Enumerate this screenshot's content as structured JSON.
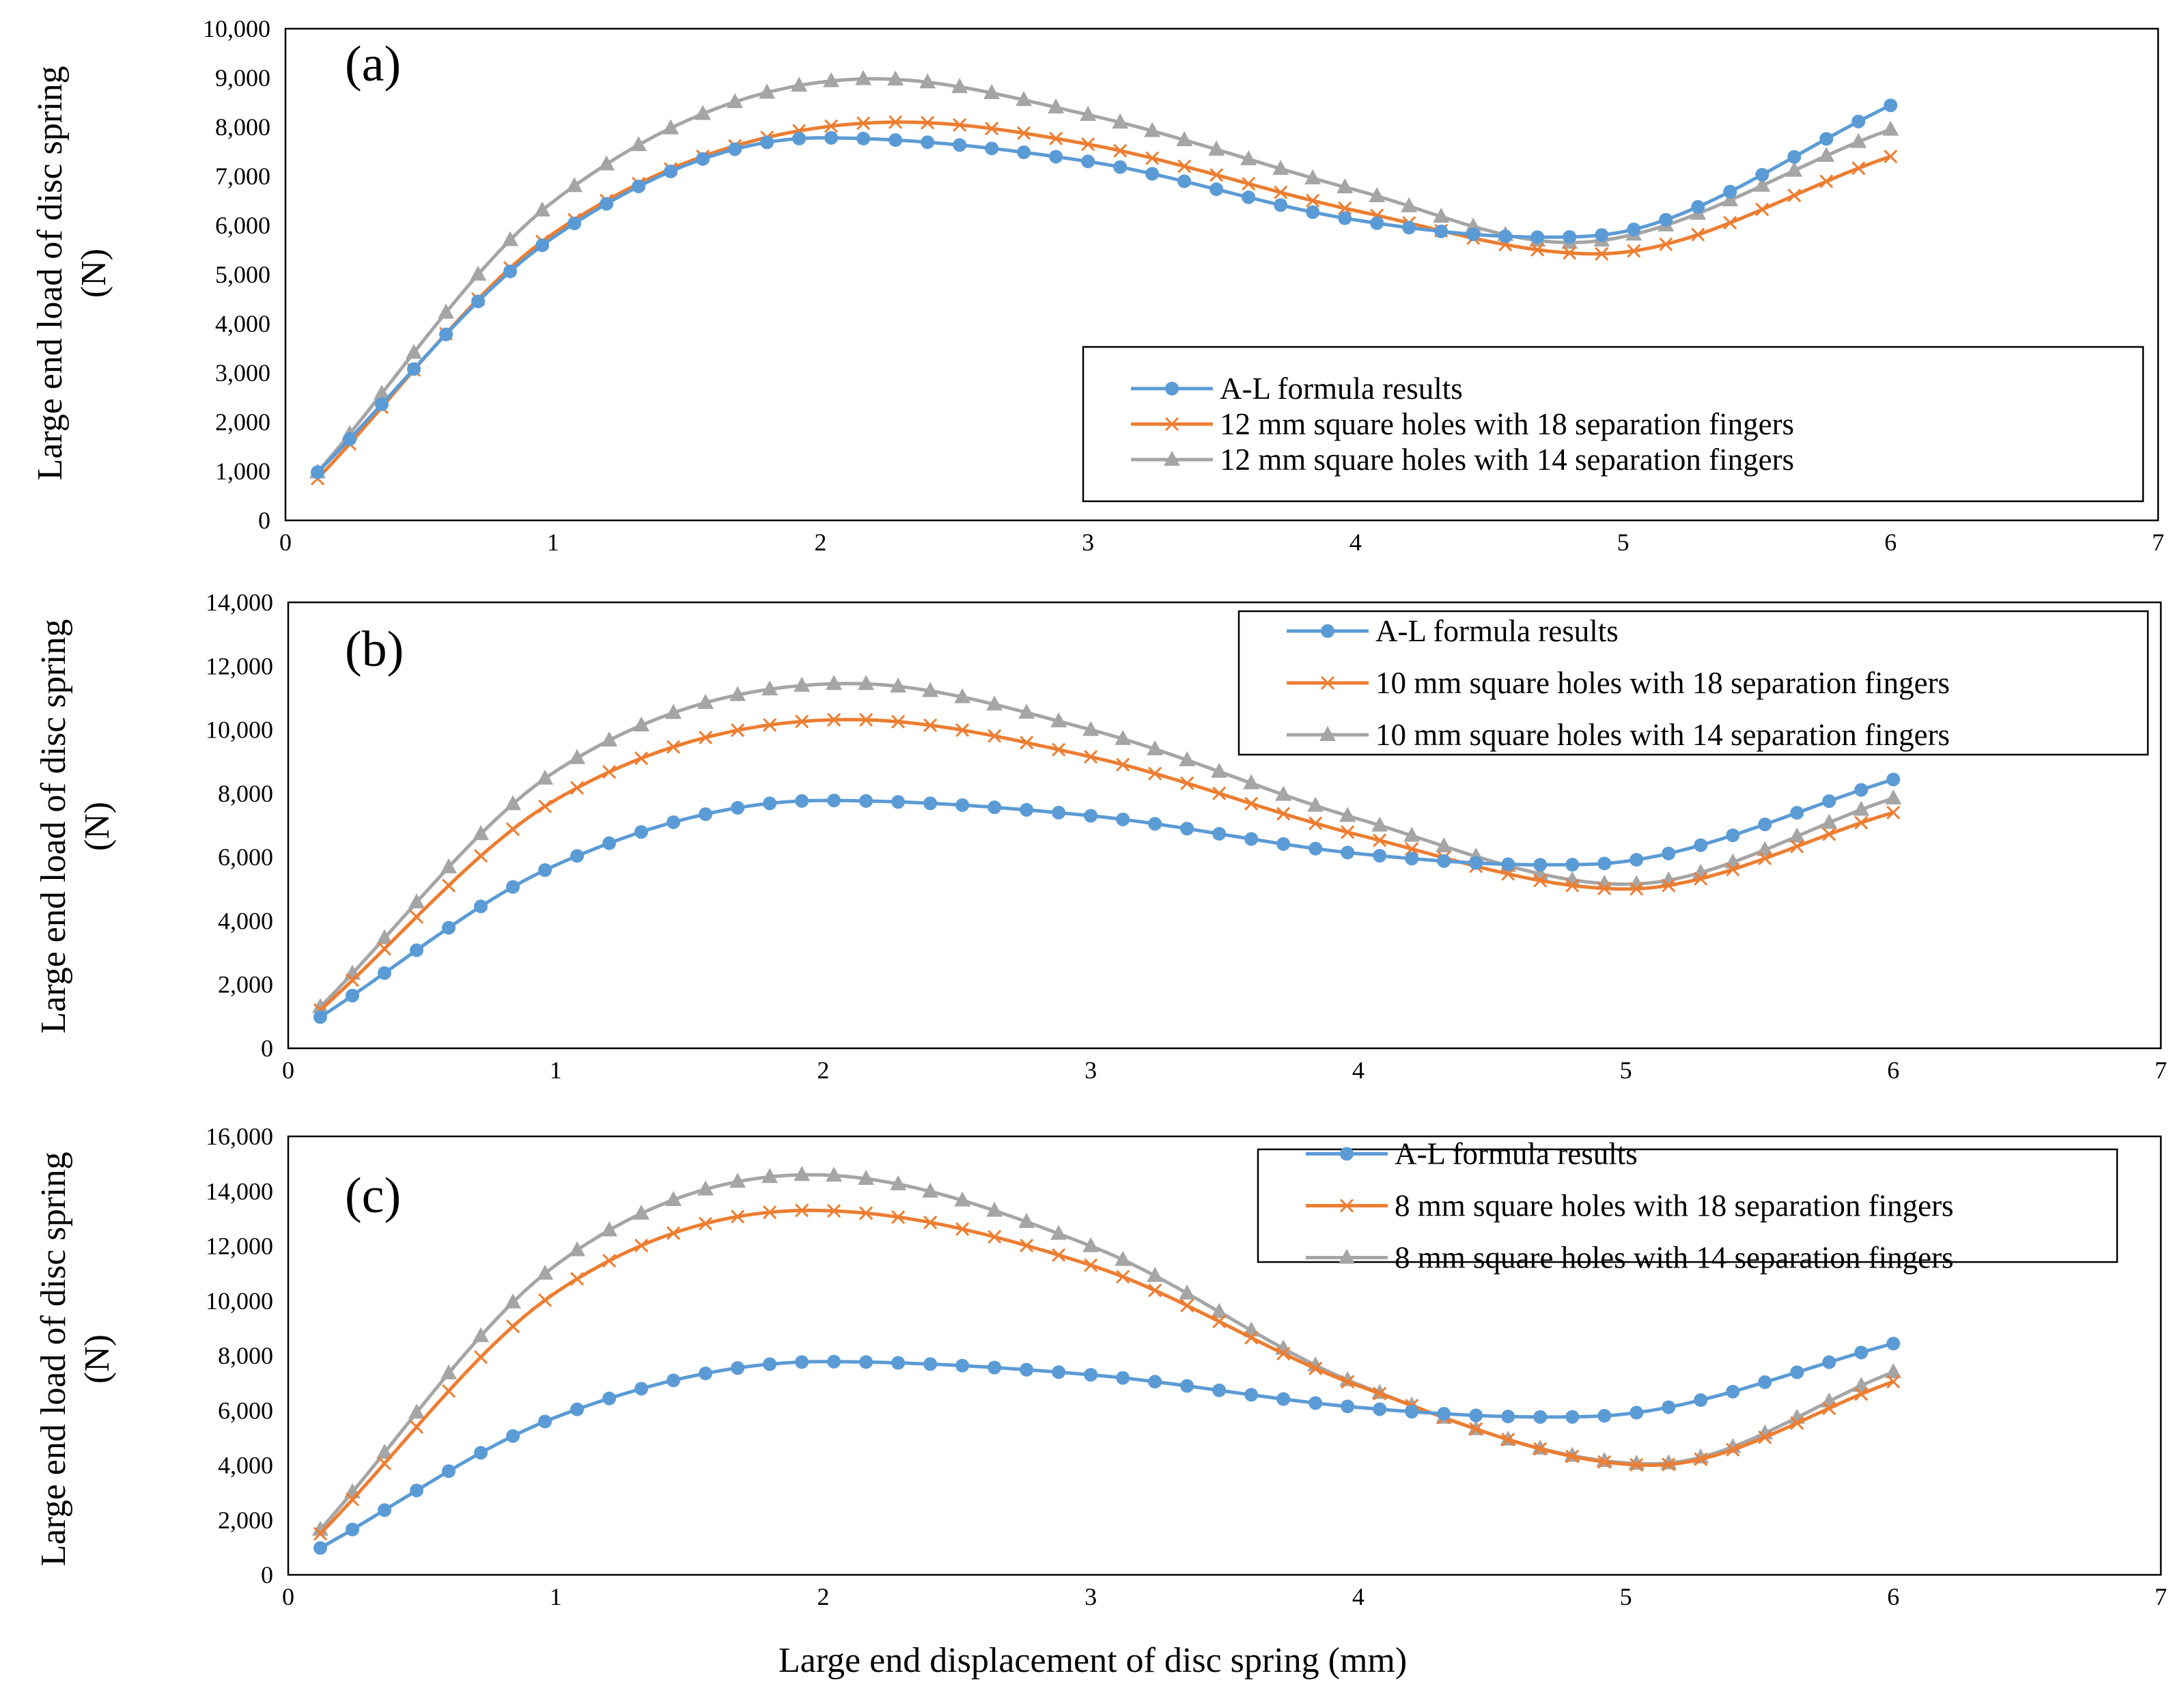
{
  "figure": {
    "xlabel": "Large end displacement of disc spring   (mm)"
  },
  "colors": {
    "al": "#5B9BD5",
    "f18": "#ED7D31",
    "f14": "#A5A5A5"
  },
  "chart_data": [
    {
      "type": "line",
      "panel": "(a)",
      "ylabel_line1": "Large end load of disc spring",
      "ylabel_line2": "(N)",
      "xlim": [
        0,
        7
      ],
      "ylim": [
        0,
        10000
      ],
      "xticks": [
        "0",
        "1",
        "2",
        "3",
        "4",
        "5",
        "6",
        "7"
      ],
      "yticks": [
        "0",
        "1,000",
        "2,000",
        "3,000",
        "4,000",
        "5,000",
        "6,000",
        "7,000",
        "8,000",
        "9,000",
        "10,000"
      ],
      "legend_position": "lower-right",
      "series": [
        {
          "name": "A-L formula results",
          "key": "al",
          "marker": "circle",
          "points": [
            [
              0.12,
              980
            ],
            [
              1,
              5750
            ],
            [
              2,
              7780
            ],
            [
              3,
              7300
            ],
            [
              4,
              6110
            ],
            [
              4.7,
              5760
            ],
            [
              5,
              5870
            ],
            [
              6,
              8440
            ]
          ]
        },
        {
          "name": "12 mm square holes with 18 separation fingers",
          "key": "f18",
          "marker": "x",
          "points": [
            [
              0.12,
              850
            ],
            [
              1,
              5830
            ],
            [
              2.3,
              8100
            ],
            [
              3,
              7650
            ],
            [
              4,
              6300
            ],
            [
              4.9,
              5420
            ],
            [
              6,
              7400
            ]
          ]
        },
        {
          "name": "12 mm square holes with 14 separation fingers",
          "key": "f14",
          "marker": "triangle",
          "points": [
            [
              0.12,
              980
            ],
            [
              1,
              6480
            ],
            [
              2.2,
              8980
            ],
            [
              3,
              8250
            ],
            [
              4,
              6720
            ],
            [
              4.8,
              5650
            ],
            [
              6,
              7950
            ]
          ]
        }
      ]
    },
    {
      "type": "line",
      "panel": "(b)",
      "ylabel_line1": "Large end load of disc spring",
      "ylabel_line2": "(N)",
      "xlim": [
        0,
        7
      ],
      "ylim": [
        0,
        14000
      ],
      "xticks": [
        "0",
        "1",
        "2",
        "3",
        "4",
        "5",
        "6",
        "7"
      ],
      "yticks": [
        "0",
        "2,000",
        "4,000",
        "6,000",
        "8,000",
        "10,000",
        "12,000",
        "14,000"
      ],
      "legend_position": "top-right",
      "series": [
        {
          "name": "A-L formula results",
          "key": "al",
          "marker": "circle",
          "points": [
            [
              0.12,
              980
            ],
            [
              1,
              5750
            ],
            [
              2,
              7780
            ],
            [
              3,
              7300
            ],
            [
              4,
              6110
            ],
            [
              4.7,
              5760
            ],
            [
              5,
              5870
            ],
            [
              6,
              8440
            ]
          ]
        },
        {
          "name": "10 mm square holes with 18  separation fingers",
          "key": "f18",
          "marker": "x",
          "points": [
            [
              0.12,
              1200
            ],
            [
              1,
              7800
            ],
            [
              2.1,
              10320
            ],
            [
              3,
              9150
            ],
            [
              4,
              6700
            ],
            [
              5,
              5000
            ],
            [
              6,
              7400
            ]
          ]
        },
        {
          "name": "10 mm square holes with 14  separation fingers",
          "key": "f14",
          "marker": "triangle",
          "points": [
            [
              0.12,
              1300
            ],
            [
              1,
              8700
            ],
            [
              2.1,
              11450
            ],
            [
              3,
              10000
            ],
            [
              4,
              7200
            ],
            [
              5,
              5150
            ],
            [
              6,
              7850
            ]
          ]
        }
      ]
    },
    {
      "type": "line",
      "panel": "(c)",
      "ylabel_line1": "Large end load of disc spring",
      "ylabel_line2": "(N)",
      "xlim": [
        0,
        7
      ],
      "ylim": [
        0,
        16000
      ],
      "xticks": [
        "0",
        "1",
        "2",
        "3",
        "4",
        "5",
        "6",
        "7"
      ],
      "yticks": [
        "0",
        "2,000",
        "4,000",
        "6,000",
        "8,000",
        "10,000",
        "12,000",
        "14,000",
        "16,000"
      ],
      "legend_position": "top-right",
      "series": [
        {
          "name": "A-L formula results",
          "key": "al",
          "marker": "circle",
          "points": [
            [
              0.12,
              980
            ],
            [
              1,
              5750
            ],
            [
              2,
              7780
            ],
            [
              3,
              7300
            ],
            [
              4,
              6110
            ],
            [
              4.7,
              5760
            ],
            [
              5,
              5870
            ],
            [
              6,
              8440
            ]
          ]
        },
        {
          "name": "8 mm square holes with  18 separation fingers",
          "key": "f18",
          "marker": "x",
          "points": [
            [
              0.12,
              1500
            ],
            [
              1,
              10300
            ],
            [
              1.95,
              13300
            ],
            [
              3,
              11300
            ],
            [
              4,
              6900
            ],
            [
              5.1,
              4000
            ],
            [
              6,
              7050
            ]
          ]
        },
        {
          "name": "8 mm square holes with  14 separation fingers",
          "key": "f14",
          "marker": "triangle",
          "points": [
            [
              0.12,
              1650
            ],
            [
              1,
              11300
            ],
            [
              1.95,
              14600
            ],
            [
              3,
              12000
            ],
            [
              4,
              6950
            ],
            [
              5.1,
              4050
            ],
            [
              6,
              7400
            ]
          ]
        }
      ]
    }
  ]
}
